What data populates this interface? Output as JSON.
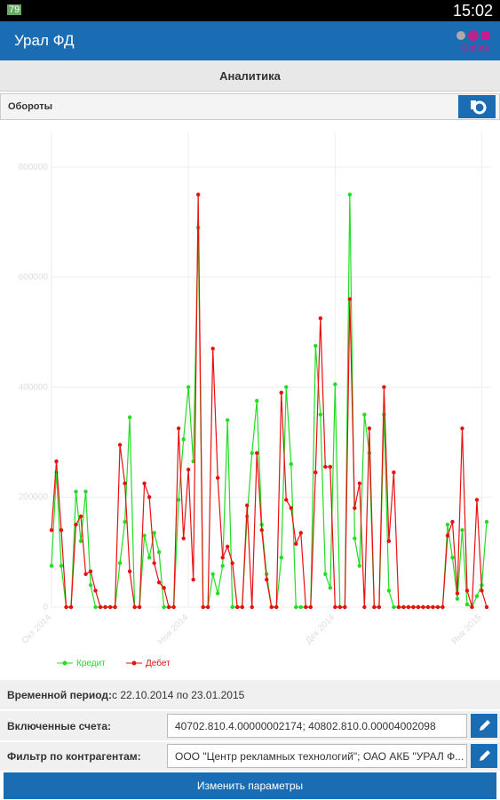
{
  "status_bar": {
    "battery": "79",
    "time": "15:02"
  },
  "app_bar": {
    "title": "Урал ФД",
    "logo": "Online"
  },
  "section": {
    "title": "Аналитика"
  },
  "report": {
    "name": "Обороты"
  },
  "chart_data": {
    "type": "line",
    "categories": [
      "Окт 2014",
      null,
      null,
      null,
      null,
      null,
      null,
      null,
      null,
      null,
      null,
      null,
      null,
      null,
      null,
      null,
      null,
      null,
      null,
      null,
      null,
      null,
      null,
      null,
      null,
      null,
      null,
      null,
      "Ноя 2014",
      null,
      null,
      null,
      null,
      null,
      null,
      null,
      null,
      null,
      null,
      null,
      null,
      null,
      null,
      null,
      null,
      null,
      null,
      null,
      null,
      null,
      null,
      null,
      null,
      null,
      null,
      null,
      null,
      null,
      "Дек 2014",
      null,
      null,
      null,
      null,
      null,
      null,
      null,
      null,
      null,
      null,
      null,
      null,
      null,
      null,
      null,
      null,
      null,
      null,
      null,
      null,
      null,
      null,
      null,
      null,
      null,
      null,
      null,
      null,
      null,
      "Янв 2015",
      null
    ],
    "series": [
      {
        "name": "Кредит",
        "color": "#22dd22",
        "values": [
          75000,
          245000,
          75000,
          0,
          0,
          210000,
          120000,
          210000,
          40000,
          0,
          0,
          0,
          0,
          0,
          80000,
          155000,
          345000,
          0,
          0,
          130000,
          90000,
          135000,
          100000,
          0,
          0,
          0,
          195000,
          305000,
          400000,
          265000,
          690000,
          0,
          0,
          60000,
          25000,
          75000,
          340000,
          0,
          0,
          0,
          165000,
          280000,
          375000,
          150000,
          60000,
          0,
          0,
          90000,
          400000,
          260000,
          0,
          0,
          0,
          0,
          475000,
          350000,
          60000,
          35000,
          405000,
          0,
          0,
          750000,
          125000,
          75000,
          350000,
          280000,
          0,
          0,
          350000,
          30000,
          0,
          0,
          0,
          0,
          0,
          0,
          0,
          0,
          0,
          0,
          0,
          150000,
          90000,
          15000,
          140000,
          5000,
          0,
          20000,
          40000,
          155000
        ]
      },
      {
        "name": "Дебет",
        "color": "#e81010",
        "values": [
          140000,
          265000,
          140000,
          0,
          0,
          150000,
          165000,
          60000,
          65000,
          30000,
          0,
          0,
          0,
          0,
          295000,
          225000,
          65000,
          0,
          0,
          225000,
          200000,
          80000,
          45000,
          35000,
          0,
          0,
          325000,
          125000,
          250000,
          50000,
          750000,
          0,
          0,
          470000,
          235000,
          90000,
          110000,
          80000,
          0,
          0,
          185000,
          0,
          280000,
          140000,
          50000,
          0,
          0,
          390000,
          195000,
          180000,
          115000,
          135000,
          0,
          0,
          245000,
          525000,
          255000,
          255000,
          0,
          0,
          0,
          560000,
          180000,
          225000,
          0,
          325000,
          0,
          0,
          400000,
          120000,
          245000,
          0,
          0,
          0,
          0,
          0,
          0,
          0,
          0,
          0,
          0,
          130000,
          155000,
          25000,
          325000,
          30000,
          0,
          195000,
          30000,
          0
        ]
      }
    ],
    "ylim": [
      0,
      850000
    ],
    "yticks": [
      0,
      200000,
      400000,
      600000,
      800000
    ],
    "grid": true,
    "legend": "bottom-left"
  },
  "params": {
    "period_label": "Временной период:",
    "period_value": "с 22.10.2014 по 23.01.2015",
    "accounts_label": "Включенные счета:",
    "accounts_value": "40702.810.4.00000002174; 40802.810.0.00004002098",
    "filter_label": "Фильтр по контрагентам:",
    "filter_value": "ООО \"Центр рекламных технологий\"; ОАО АКБ \"УРАЛ Ф...",
    "button": "Изменить параметры"
  }
}
